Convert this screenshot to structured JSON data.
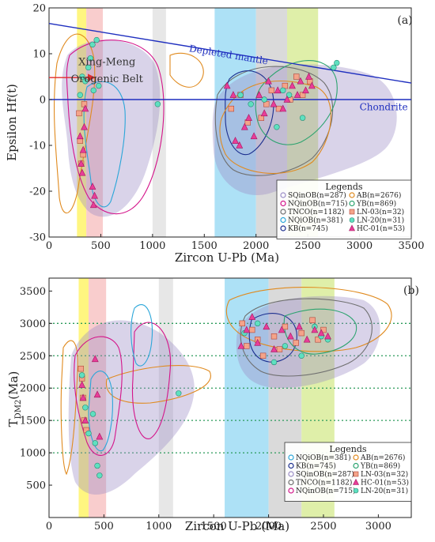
{
  "chart_data": [
    {
      "id": "a",
      "panel_label": "(a)",
      "type": "scatter",
      "xlabel": "Zircon U-Pb (Ma)",
      "ylabel": "Epsilon Hf(t)",
      "xlim": [
        0,
        3500
      ],
      "ylim": [
        -30,
        20
      ],
      "xticks": [
        0,
        500,
        1000,
        1500,
        2000,
        2500,
        3000,
        3500
      ],
      "yticks": [
        -30,
        -20,
        -10,
        0,
        10,
        20
      ],
      "bands": [
        {
          "x0": 270,
          "x1": 360,
          "color": "#fff56a"
        },
        {
          "x0": 360,
          "x1": 520,
          "color": "#f8c4c4"
        },
        {
          "x0": 1000,
          "x1": 1130,
          "color": "#e3e3e3"
        },
        {
          "x0": 1600,
          "x1": 2000,
          "color": "#9fdcf4"
        },
        {
          "x0": 2000,
          "x1": 2300,
          "color": "#d3d3d3"
        },
        {
          "x0": 2300,
          "x1": 2600,
          "color": "#d9ec9a"
        }
      ],
      "reference_lines": [
        {
          "name": "Depleted mantle",
          "x": [
            0,
            3500
          ],
          "y": [
            16.6,
            3.6
          ],
          "color": "#1f2fbf"
        },
        {
          "name": "Chondrite",
          "x": [
            0,
            3500
          ],
          "y": [
            0,
            0
          ],
          "color": "#1f2fbf"
        }
      ],
      "line_labels": [
        {
          "text": "Depleted mantle",
          "x": 1350,
          "y": 10.5
        },
        {
          "text": "Chondrite",
          "x": 3000,
          "y": -2.3
        }
      ],
      "annotations": [
        {
          "text": "Xing-Meng",
          "x": 560,
          "y": 7.5
        },
        {
          "text": "Orogenic Belt",
          "x": 560,
          "y": 3.8
        }
      ],
      "arrow": {
        "from": [
          0,
          4.8
        ],
        "to": [
          440,
          4.8
        ],
        "color": "#e32b2b"
      },
      "legend": {
        "title": "Legends",
        "entries": [
          {
            "label": "SQinOB(n=287)",
            "marker": "circle-open",
            "color": "#9a8cc6"
          },
          {
            "label": "AB(n=2676)",
            "marker": "circle-open",
            "color": "#e08a1e"
          },
          {
            "label": "NQinOB(n=715)",
            "marker": "circle-open",
            "color": "#d4148a"
          },
          {
            "label": "YB(n=869)",
            "marker": "circle-open",
            "color": "#2ca36f"
          },
          {
            "label": "TNCO(n=1182)",
            "marker": "circle-open",
            "color": "#6f6f6f"
          },
          {
            "label": "LN-03(n=32)",
            "marker": "square",
            "color": "#f4a48a"
          },
          {
            "label": "NQiOB(n=381)",
            "marker": "circle-open",
            "color": "#2aa6d9"
          },
          {
            "label": "LN-20(n=31)",
            "marker": "circle",
            "color": "#5fe0c0"
          },
          {
            "label": "KB(n=745)",
            "marker": "circle-open",
            "color": "#1c2f8f"
          },
          {
            "label": "HC-01(n=53)",
            "marker": "triangle",
            "color": "#e83e98"
          }
        ]
      },
      "series": [
        {
          "name": "LN-03(n=32)",
          "marker": "square",
          "color": "#f4a48a",
          "x": [
            290,
            300,
            310,
            330,
            340,
            1760,
            1850,
            1920,
            2050,
            2100,
            2150,
            2220,
            2280,
            2330,
            2390,
            2450,
            2520
          ],
          "y": [
            -3,
            -9,
            -14,
            -12,
            -1,
            -2,
            1,
            -5,
            -4,
            -1,
            2,
            -2,
            3,
            0,
            5,
            1,
            4
          ]
        },
        {
          "name": "LN-20(n=31)",
          "marker": "circle",
          "color": "#5fe0c0",
          "x": [
            300,
            320,
            350,
            380,
            400,
            420,
            430,
            460,
            480,
            1050,
            1850,
            1950,
            2080,
            2200,
            2260,
            2320,
            2450,
            2750,
            2780
          ],
          "y": [
            1,
            5,
            4,
            7,
            9,
            12,
            2,
            13,
            3,
            -1,
            1,
            -1,
            0,
            -6,
            2,
            1,
            -4,
            7,
            8
          ]
        },
        {
          "name": "HC-01(n=53)",
          "marker": "triangle",
          "color": "#e83e98",
          "x": [
            300,
            310,
            320,
            330,
            340,
            350,
            420,
            430,
            440,
            1720,
            1780,
            1800,
            1840,
            1890,
            1930,
            1980,
            2030,
            2080,
            2120,
            2170,
            2210,
            2260,
            2300,
            2350,
            2400,
            2430,
            2480,
            2510,
            2540
          ],
          "y": [
            -8,
            -14,
            -16,
            -11,
            -6,
            -2,
            -19,
            -23,
            -21,
            3,
            1,
            -9,
            -10,
            -6,
            -4,
            -8,
            1,
            -3,
            4,
            -1,
            2,
            -2,
            0,
            3,
            1,
            4,
            2,
            5,
            3
          ]
        }
      ]
    },
    {
      "id": "b",
      "panel_label": "(b)",
      "type": "scatter",
      "xlabel": "Zircon U-Pb (Ma)",
      "ylabel": "T_DM2 (Ma)",
      "ylabel_main": "T",
      "ylabel_sub": "DM2",
      "ylabel_rest": "(Ma)",
      "xlim": [
        0,
        3300
      ],
      "ylim": [
        0,
        3700
      ],
      "xticks": [
        0,
        500,
        1000,
        1500,
        2000,
        2500,
        3000
      ],
      "yticks": [
        500,
        1000,
        1500,
        2000,
        2500,
        3000,
        3500
      ],
      "grid": {
        "y": [
          1000,
          1500,
          2000,
          2500,
          3000
        ],
        "style": "dotted",
        "color": "#2a9a5a"
      },
      "bands": [
        {
          "x0": 270,
          "x1": 360,
          "color": "#fff56a"
        },
        {
          "x0": 360,
          "x1": 520,
          "color": "#f8c4c4"
        },
        {
          "x0": 1000,
          "x1": 1130,
          "color": "#e3e3e3"
        },
        {
          "x0": 1600,
          "x1": 2000,
          "color": "#9fdcf4"
        },
        {
          "x0": 2000,
          "x1": 2300,
          "color": "#d3d3d3"
        },
        {
          "x0": 2300,
          "x1": 2600,
          "color": "#d9ec9a"
        }
      ],
      "legend": {
        "title": "Legends",
        "entries": [
          {
            "label": "NQiOB(n=381)",
            "marker": "circle-open",
            "color": "#2aa6d9"
          },
          {
            "label": "AB(n=2676)",
            "marker": "circle-open",
            "color": "#e08a1e"
          },
          {
            "label": "KB(n=745)",
            "marker": "circle-open",
            "color": "#1c2f8f"
          },
          {
            "label": "YB(n=869)",
            "marker": "circle-open",
            "color": "#2ca36f"
          },
          {
            "label": "SQinOB(n=287)",
            "marker": "circle-open",
            "color": "#9a8cc6"
          },
          {
            "label": "LN-03(n=32)",
            "marker": "square",
            "color": "#f4a48a"
          },
          {
            "label": "TNCO(n=1182)",
            "marker": "circle-open",
            "color": "#6f6f6f"
          },
          {
            "label": "HC-01(n=53)",
            "marker": "triangle",
            "color": "#e83e98"
          },
          {
            "label": "NQinOB(n=715)",
            "marker": "circle-open",
            "color": "#d4148a"
          },
          {
            "label": "LN-20(n=31)",
            "marker": "circle",
            "color": "#5fe0c0"
          }
        ]
      },
      "series": [
        {
          "name": "LN-03(n=32)",
          "marker": "square",
          "color": "#f4a48a",
          "x": [
            290,
            300,
            310,
            320,
            340,
            1760,
            1800,
            1850,
            1900,
            1950,
            2050,
            2100,
            2150,
            2250,
            2300,
            2400,
            2450,
            2500
          ],
          "y": [
            2300,
            2150,
            1850,
            1500,
            1350,
            3000,
            2650,
            2900,
            2750,
            2500,
            2800,
            2600,
            2950,
            2700,
            2850,
            3050,
            2750,
            2900
          ]
        },
        {
          "name": "LN-20(n=31)",
          "marker": "circle",
          "color": "#5fe0c0",
          "x": [
            300,
            330,
            360,
            400,
            420,
            440,
            460,
            1180,
            1780,
            1900,
            2050,
            2150,
            2300,
            2420,
            2480,
            2540
          ],
          "y": [
            2200,
            1700,
            1300,
            1600,
            1150,
            800,
            650,
            1920,
            2850,
            3000,
            2400,
            2650,
            2500,
            2950,
            2800,
            2750
          ]
        },
        {
          "name": "HC-01(n=53)",
          "marker": "triangle",
          "color": "#e83e98",
          "x": [
            300,
            310,
            330,
            420,
            440,
            460,
            1750,
            1800,
            1850,
            1900,
            1980,
            2050,
            2120,
            2200,
            2280,
            2350,
            2420,
            2480,
            2540
          ],
          "y": [
            2050,
            1850,
            1500,
            2450,
            1900,
            1250,
            2650,
            2900,
            3100,
            2700,
            2950,
            2600,
            2900,
            2800,
            2950,
            2750,
            2900,
            2850,
            2800
          ]
        }
      ]
    }
  ]
}
